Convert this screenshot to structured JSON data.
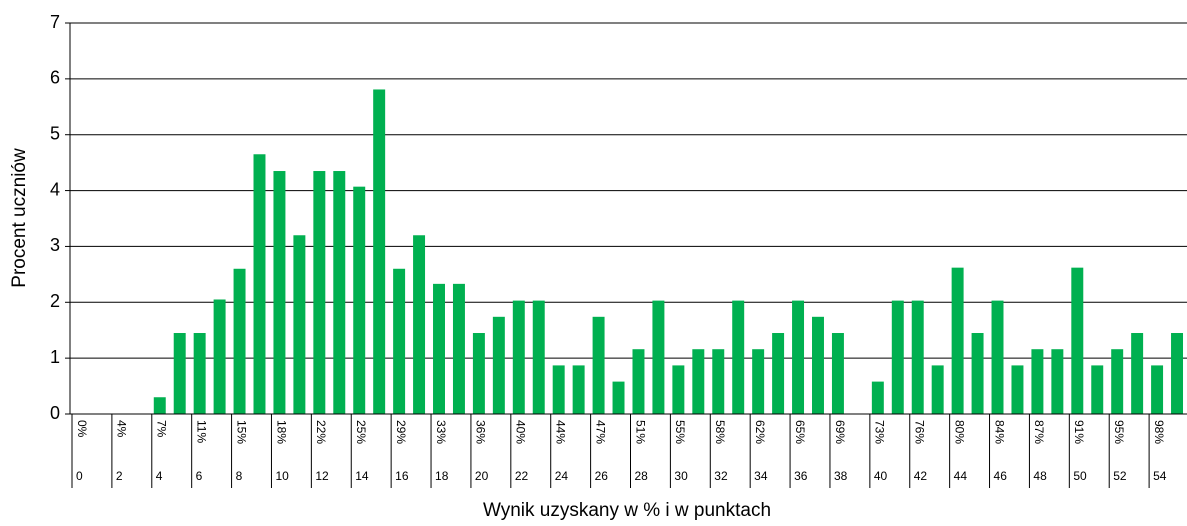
{
  "chart_data": {
    "type": "bar",
    "x_label": "Wynik uzyskany w % i w punktach",
    "y_label": "Procent uczniów",
    "categories": [
      "0",
      null,
      "2",
      null,
      "4",
      null,
      "6",
      null,
      "8",
      null,
      "10",
      null,
      "12",
      null,
      "14",
      null,
      "16",
      null,
      "18",
      null,
      "20",
      null,
      "22",
      null,
      "24",
      null,
      "26",
      null,
      "28",
      null,
      "30",
      null,
      "32",
      null,
      "34",
      null,
      "36",
      null,
      "38",
      null,
      "40",
      null,
      "42",
      null,
      "44",
      null,
      "46",
      null,
      "48",
      null,
      "50",
      null,
      "52",
      null,
      "54",
      null
    ],
    "percent_labels": [
      "0%",
      null,
      "4%",
      null,
      "7%",
      null,
      "11%",
      null,
      "15%",
      null,
      "18%",
      null,
      "22%",
      null,
      "25%",
      null,
      "29%",
      null,
      "33%",
      null,
      "36%",
      null,
      "40%",
      null,
      "44%",
      null,
      "47%",
      null,
      "51%",
      null,
      "55%",
      null,
      "58%",
      null,
      "62%",
      null,
      "65%",
      null,
      "69%",
      null,
      "73%",
      null,
      "76%",
      null,
      "80%",
      null,
      "84%",
      null,
      "87%",
      null,
      "91%",
      null,
      "95%",
      null,
      "98%",
      null
    ],
    "values": [
      0,
      0,
      0,
      0,
      0.3,
      1.45,
      1.45,
      2.05,
      2.6,
      4.65,
      4.35,
      3.2,
      4.35,
      4.35,
      4.07,
      5.81,
      2.6,
      3.2,
      2.33,
      2.33,
      1.45,
      1.74,
      2.03,
      2.03,
      0.87,
      0.87,
      1.74,
      0.58,
      1.16,
      2.03,
      0.87,
      1.16,
      1.16,
      2.03,
      1.16,
      1.45,
      2.03,
      1.74,
      1.45,
      0,
      0.58,
      2.03,
      2.03,
      0.87,
      2.62,
      1.45,
      2.03,
      0.87,
      1.16,
      1.16,
      2.62,
      0.87,
      1.16,
      1.45,
      0.87,
      1.45
    ],
    "color": "#00b050",
    "ylim": [
      0,
      7
    ],
    "yticks": [
      0,
      1,
      2,
      3,
      4,
      5,
      6,
      7
    ],
    "grid": true
  }
}
